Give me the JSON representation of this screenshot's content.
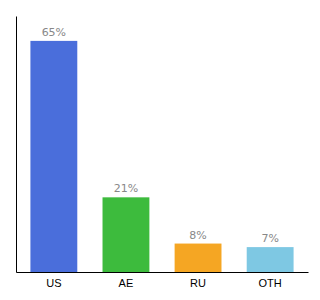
{
  "chart_data": {
    "type": "bar",
    "categories": [
      "US",
      "AE",
      "RU",
      "OTH"
    ],
    "values": [
      65,
      21,
      8,
      7
    ],
    "value_labels": [
      "65%",
      "21%",
      "8%",
      "7%"
    ],
    "colors": [
      "#4a6edb",
      "#3dbb3d",
      "#f5a623",
      "#7ec8e3"
    ],
    "ylim": [
      0,
      72
    ],
    "data_labels": true,
    "tick_labels": "x",
    "grid": false
  }
}
